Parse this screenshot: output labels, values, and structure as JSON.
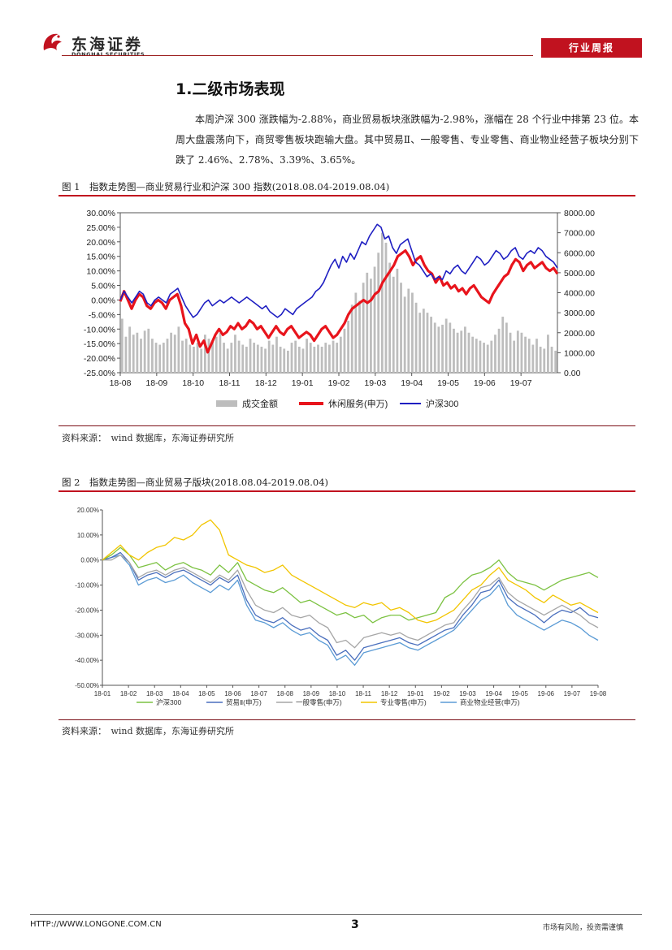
{
  "header": {
    "brand_cn": "东海证券",
    "brand_en": "DONGHAI SECURITIES",
    "report_type": "行业周报"
  },
  "section": {
    "title": "1.二级市场表现",
    "paragraph": "本周沪深 300 涨跌幅为-2.88%，商业贸易板块涨跌幅为-2.98%，涨幅在 28 个行业中排第 23 位。本周大盘震荡向下，商贸零售板块跑输大盘。其中贸易Ⅱ、一般零售、专业零售、商业物业经营子板块分别下跌了 2.46%、2.78%、3.39%、3.65%。"
  },
  "figure1": {
    "caption": "图 1　指数走势图—商业贸易行业和沪深 300 指数(2018.08.04-2019.08.04)",
    "source": "资料来源：　wind 数据库，东海证券研究所"
  },
  "figure2": {
    "caption": "图 2　指数走势图—商业贸易子版块(2018.08.04-2019.08.04)",
    "source": "资料来源：　wind 数据库，东海证券研究所"
  },
  "footer": {
    "url": "HTTP://WWW.LONGONE.COM.CN",
    "page": "3",
    "risk": "市场有风险，投资需谨慎"
  },
  "chart_data": [
    {
      "type": "line",
      "title": "指数走势图—商业贸易行业和沪深300指数",
      "x_labels": [
        "18-08",
        "18-09",
        "18-10",
        "18-11",
        "18-12",
        "19-01",
        "19-02",
        "19-03",
        "19-04",
        "19-05",
        "19-06",
        "19-07"
      ],
      "y_left": {
        "min": -25,
        "max": 30,
        "step": 5,
        "format": "percent",
        "tick_labels": [
          "30.00%",
          "25.00%",
          "20.00%",
          "15.00%",
          "10.00%",
          "5.00%",
          "0.00%",
          "-5.00%",
          "-10.00%",
          "-15.00%",
          "-20.00%",
          "-25.00%"
        ]
      },
      "y_right": {
        "min": 0,
        "max": 8000,
        "step": 1000,
        "tick_labels": [
          "8000.00",
          "7000.00",
          "6000.00",
          "5000.00",
          "4000.00",
          "3000.00",
          "2000.00",
          "1000.00",
          "0.00"
        ]
      },
      "series": [
        {
          "name": "成交金额",
          "kind": "bar",
          "axis": "right",
          "color": "#bdbdbd",
          "values": [
            2700,
            1800,
            2300,
            1900,
            2000,
            1700,
            2100,
            2200,
            1700,
            1500,
            1400,
            1500,
            1700,
            2000,
            1900,
            2300,
            1600,
            1700,
            1400,
            1300,
            1500,
            1200,
            1900,
            1700,
            1600,
            1800,
            2000,
            1500,
            1200,
            1500,
            1900,
            1600,
            1400,
            1300,
            1700,
            1500,
            1400,
            1300,
            1200,
            1600,
            1400,
            1800,
            1300,
            1200,
            1100,
            1500,
            1600,
            1300,
            1200,
            1700,
            1500,
            1300,
            1400,
            1300,
            1500,
            1400,
            1600,
            1500,
            1800,
            2200,
            2600,
            3400,
            4000,
            3600,
            4500,
            5000,
            4700,
            5300,
            6000,
            7000,
            6500,
            5500,
            4800,
            5200,
            4500,
            3800,
            4200,
            4000,
            3500,
            3000,
            3200,
            3000,
            2800,
            2500,
            2300,
            2400,
            2700,
            2500,
            2200,
            2000,
            2100,
            2300,
            2000,
            1800,
            1700,
            1600,
            1500,
            1400,
            1600,
            1900,
            2200,
            2800,
            2500,
            2000,
            1600,
            2100,
            2000,
            1800,
            1700,
            1400,
            1700,
            1300,
            1200,
            1900,
            1300,
            1100
          ]
        },
        {
          "name": "休闲服务(申万)",
          "kind": "line",
          "axis": "left",
          "color": "#e8141c",
          "values": [
            -0.5,
            3,
            0,
            -3,
            0,
            2,
            1,
            -2,
            -3,
            -1,
            0,
            -1,
            -3,
            0,
            1,
            2,
            -2,
            -8,
            -10,
            -15,
            -12,
            -16,
            -14,
            -18,
            -15,
            -12,
            -10,
            -12,
            -11,
            -9,
            -10,
            -8,
            -10,
            -9,
            -7,
            -8,
            -10,
            -9,
            -11,
            -13,
            -11,
            -9,
            -11,
            -12,
            -10,
            -9,
            -11,
            -13,
            -12,
            -11,
            -12,
            -14,
            -12,
            -10,
            -9,
            -11,
            -13,
            -12,
            -10,
            -8,
            -5,
            -3,
            -2,
            -1,
            0,
            -1,
            0,
            2,
            3,
            6,
            8,
            10,
            12,
            15,
            16,
            17,
            15,
            12,
            14,
            15,
            12,
            10,
            9,
            6,
            8,
            5,
            6,
            4,
            5,
            3,
            4,
            2,
            4,
            5,
            3,
            1,
            0,
            -1,
            2,
            4,
            6,
            8,
            9,
            12,
            14,
            13,
            10,
            12,
            13,
            11,
            12,
            13,
            11,
            10,
            11,
            9
          ]
        },
        {
          "name": "沪深300",
          "kind": "line",
          "axis": "left",
          "color": "#1f1fc2",
          "values": [
            0,
            3,
            1,
            -1,
            1,
            3,
            2,
            -1,
            -2,
            0,
            1,
            0,
            -1,
            2,
            3,
            4,
            1,
            -2,
            -4,
            -6,
            -5,
            -3,
            -1,
            0,
            -2,
            -1,
            0,
            -1,
            0,
            1,
            0,
            -1,
            0,
            1,
            0,
            -1,
            -2,
            -3,
            -2,
            -4,
            -5,
            -6,
            -5,
            -3,
            -4,
            -5,
            -3,
            -2,
            -1,
            0,
            1,
            3,
            4,
            6,
            9,
            12,
            14,
            11,
            15,
            13,
            16,
            14,
            17,
            20,
            19,
            22,
            24,
            26,
            25,
            21,
            22,
            18,
            16,
            19,
            20,
            21,
            17,
            13,
            12,
            10,
            8,
            9,
            7,
            8,
            7,
            10,
            9,
            11,
            12,
            10,
            9,
            11,
            13,
            15,
            14,
            12,
            13,
            15,
            17,
            16,
            14,
            15,
            17,
            18,
            15,
            14,
            16,
            17,
            16,
            18,
            17,
            15,
            14,
            13,
            11
          ]
        }
      ]
    },
    {
      "type": "line",
      "title": "指数走势图—商业贸易子版块",
      "x_labels": [
        "18-01",
        "18-02",
        "18-03",
        "18-04",
        "18-05",
        "18-06",
        "18-07",
        "18-08",
        "18-09",
        "18-10",
        "18-11",
        "18-12",
        "19-01",
        "19-02",
        "19-03",
        "19-04",
        "19-05",
        "19-06",
        "19-07",
        "19-08"
      ],
      "y_axis": {
        "min": -50,
        "max": 20,
        "step": 10,
        "format": "percent",
        "tick_labels": [
          "20.00%",
          "10.00%",
          "0.00%",
          "-10.00%",
          "-20.00%",
          "-30.00%",
          "-40.00%",
          "-50.00%"
        ]
      },
      "series": [
        {
          "name": "沪深300",
          "color": "#7cc242",
          "values": [
            0,
            2,
            5,
            2,
            -3,
            -2,
            -1,
            -4,
            -2,
            -1,
            -3,
            -4,
            -6,
            -2,
            -5,
            -1,
            -8,
            -10,
            -12,
            -13,
            -11,
            -14,
            -17,
            -16,
            -18,
            -20,
            -22,
            -21,
            -23,
            -22,
            -25,
            -23,
            -22,
            -22,
            -24,
            -23,
            -22,
            -21,
            -15,
            -13,
            -9,
            -6,
            -5,
            -3,
            0,
            -5,
            -8,
            -9,
            -10,
            -12,
            -10,
            -8,
            -7,
            -6,
            -5,
            -7
          ]
        },
        {
          "name": "贸易Ⅱ(申万)",
          "color": "#4a6fbd",
          "values": [
            0,
            1,
            3,
            -1,
            -8,
            -6,
            -5,
            -7,
            -5,
            -4,
            -6,
            -8,
            -10,
            -7,
            -9,
            -6,
            -16,
            -22,
            -24,
            -25,
            -23,
            -26,
            -28,
            -27,
            -30,
            -32,
            -38,
            -36,
            -40,
            -35,
            -34,
            -33,
            -32,
            -31,
            -33,
            -34,
            -32,
            -30,
            -28,
            -27,
            -22,
            -18,
            -13,
            -12,
            -8,
            -15,
            -18,
            -20,
            -22,
            -25,
            -22,
            -20,
            -21,
            -19,
            -22,
            -23
          ]
        },
        {
          "name": "一般零售(申万)",
          "color": "#a6a6a6",
          "values": [
            0,
            0,
            2,
            -1,
            -7,
            -5,
            -4,
            -6,
            -4,
            -3,
            -5,
            -7,
            -9,
            -6,
            -8,
            -4,
            -12,
            -18,
            -20,
            -21,
            -19,
            -22,
            -23,
            -22,
            -25,
            -27,
            -33,
            -32,
            -35,
            -31,
            -30,
            -29,
            -30,
            -29,
            -31,
            -32,
            -30,
            -28,
            -26,
            -25,
            -20,
            -16,
            -11,
            -10,
            -7,
            -13,
            -16,
            -18,
            -20,
            -22,
            -20,
            -18,
            -20,
            -22,
            -25,
            -27
          ]
        },
        {
          "name": "专业零售(申万)",
          "color": "#f2c500",
          "values": [
            0,
            3,
            6,
            2,
            0,
            3,
            5,
            6,
            9,
            8,
            10,
            14,
            16,
            12,
            2,
            0,
            -2,
            -3,
            -5,
            -4,
            -2,
            -6,
            -8,
            -10,
            -12,
            -14,
            -16,
            -18,
            -19,
            -17,
            -18,
            -17,
            -20,
            -19,
            -21,
            -24,
            -25,
            -24,
            -22,
            -20,
            -16,
            -12,
            -10,
            -6,
            -3,
            -8,
            -10,
            -12,
            -15,
            -17,
            -14,
            -16,
            -18,
            -17,
            -19,
            -21
          ]
        },
        {
          "name": "商业物业经营(申万)",
          "color": "#5b9bd5",
          "values": [
            0,
            1,
            2,
            -2,
            -10,
            -8,
            -7,
            -9,
            -8,
            -6,
            -9,
            -11,
            -13,
            -10,
            -12,
            -8,
            -18,
            -24,
            -25,
            -27,
            -25,
            -28,
            -30,
            -29,
            -32,
            -34,
            -40,
            -38,
            -42,
            -37,
            -36,
            -35,
            -34,
            -33,
            -35,
            -36,
            -34,
            -32,
            -30,
            -28,
            -24,
            -20,
            -16,
            -14,
            -10,
            -18,
            -22,
            -24,
            -26,
            -28,
            -26,
            -24,
            -25,
            -27,
            -30,
            -32
          ]
        }
      ]
    }
  ]
}
